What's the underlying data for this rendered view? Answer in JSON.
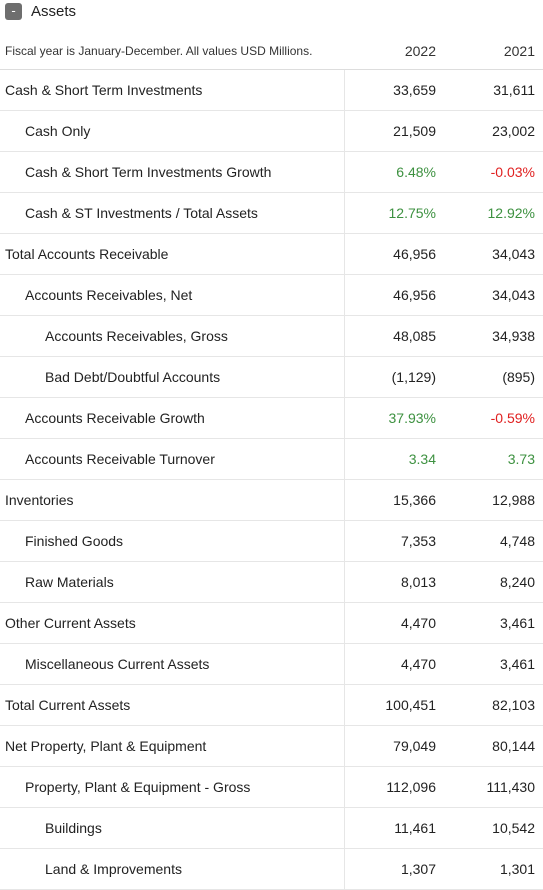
{
  "section": {
    "toggle_label": "-",
    "title": "Assets"
  },
  "table": {
    "note": "Fiscal year is January-December. All values USD Millions.",
    "years": [
      "2022",
      "2021"
    ],
    "colors": {
      "positive": "#3d9140",
      "negative": "#e02020"
    },
    "rows": [
      {
        "label": "Cash & Short Term Investments",
        "level": 0,
        "values": [
          "33,659",
          "31,611"
        ],
        "tones": [
          "",
          ""
        ]
      },
      {
        "label": "Cash Only",
        "level": 1,
        "values": [
          "21,509",
          "23,002"
        ],
        "tones": [
          "",
          ""
        ]
      },
      {
        "label": "Cash & Short Term Investments Growth",
        "level": 1,
        "values": [
          "6.48%",
          "-0.03%"
        ],
        "tones": [
          "pos",
          "neg"
        ]
      },
      {
        "label": "Cash & ST Investments / Total Assets",
        "level": 1,
        "values": [
          "12.75%",
          "12.92%"
        ],
        "tones": [
          "pos",
          "pos"
        ]
      },
      {
        "label": "Total Accounts Receivable",
        "level": 0,
        "values": [
          "46,956",
          "34,043"
        ],
        "tones": [
          "",
          ""
        ]
      },
      {
        "label": "Accounts Receivables, Net",
        "level": 1,
        "values": [
          "46,956",
          "34,043"
        ],
        "tones": [
          "",
          ""
        ]
      },
      {
        "label": "Accounts Receivables, Gross",
        "level": 2,
        "values": [
          "48,085",
          "34,938"
        ],
        "tones": [
          "",
          ""
        ]
      },
      {
        "label": "Bad Debt/Doubtful Accounts",
        "level": 2,
        "values": [
          "(1,129)",
          "(895)"
        ],
        "tones": [
          "",
          ""
        ]
      },
      {
        "label": "Accounts Receivable Growth",
        "level": 1,
        "values": [
          "37.93%",
          "-0.59%"
        ],
        "tones": [
          "pos",
          "neg"
        ]
      },
      {
        "label": "Accounts Receivable Turnover",
        "level": 1,
        "values": [
          "3.34",
          "3.73"
        ],
        "tones": [
          "pos",
          "pos"
        ]
      },
      {
        "label": "Inventories",
        "level": 0,
        "values": [
          "15,366",
          "12,988"
        ],
        "tones": [
          "",
          ""
        ]
      },
      {
        "label": "Finished Goods",
        "level": 1,
        "values": [
          "7,353",
          "4,748"
        ],
        "tones": [
          "",
          ""
        ]
      },
      {
        "label": "Raw Materials",
        "level": 1,
        "values": [
          "8,013",
          "8,240"
        ],
        "tones": [
          "",
          ""
        ]
      },
      {
        "label": "Other Current Assets",
        "level": 0,
        "values": [
          "4,470",
          "3,461"
        ],
        "tones": [
          "",
          ""
        ]
      },
      {
        "label": "Miscellaneous Current Assets",
        "level": 1,
        "values": [
          "4,470",
          "3,461"
        ],
        "tones": [
          "",
          ""
        ]
      },
      {
        "label": "Total Current Assets",
        "level": 0,
        "values": [
          "100,451",
          "82,103"
        ],
        "tones": [
          "",
          ""
        ]
      },
      {
        "label": "Net Property, Plant & Equipment",
        "level": 0,
        "values": [
          "79,049",
          "80,144"
        ],
        "tones": [
          "",
          ""
        ]
      },
      {
        "label": "Property, Plant & Equipment - Gross",
        "level": 1,
        "values": [
          "112,096",
          "111,430"
        ],
        "tones": [
          "",
          ""
        ]
      },
      {
        "label": "Buildings",
        "level": 2,
        "values": [
          "11,461",
          "10,542"
        ],
        "tones": [
          "",
          ""
        ]
      },
      {
        "label": "Land & Improvements",
        "level": 2,
        "values": [
          "1,307",
          "1,301"
        ],
        "tones": [
          "",
          ""
        ]
      }
    ]
  }
}
